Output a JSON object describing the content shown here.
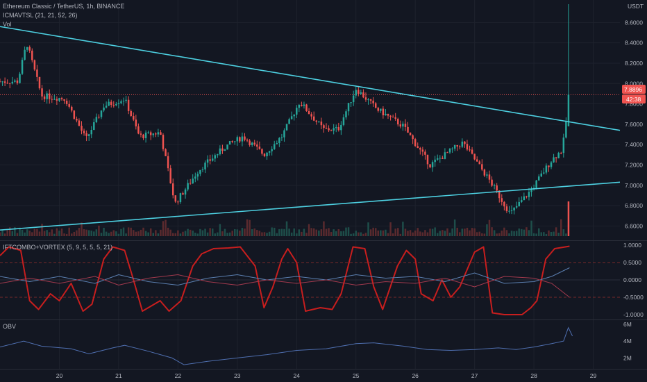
{
  "header": {
    "symbol_line": "Ethereum Classic / TetherUS, 1h, BINANCE",
    "indicator_line": "ICMAVTSL (21, 21, 52, 26)",
    "volume_label": "Vol",
    "currency": "USDT"
  },
  "price_tags": {
    "last_price": "7.8896",
    "countdown": "42:38"
  },
  "colors": {
    "up": "#26a69a",
    "down": "#ef5350",
    "trendline": "#4dd0e1",
    "ift": "#c81e1e",
    "vortex_plus": "#5b7fb0",
    "vortex_minus": "#a33a4e",
    "obv": "#4f6fb0",
    "background": "#131722"
  },
  "chart_data": [
    {
      "type": "candlestick",
      "pane": "price",
      "x_ticks": [
        "20",
        "21",
        "22",
        "23",
        "24",
        "25",
        "26",
        "27",
        "28",
        "29"
      ],
      "y_ticks": [
        "8.6000",
        "8.4000",
        "8.2000",
        "8.0000",
        "7.8000",
        "7.6000",
        "7.4000",
        "7.2000",
        "7.0000",
        "6.8000",
        "6.6000"
      ],
      "ylim": [
        6.5,
        8.78
      ],
      "candles_per_day": 24,
      "key_points": [
        {
          "day": 19.3,
          "price": 8.02
        },
        {
          "day": 19.45,
          "price": 8.4
        },
        {
          "day": 19.7,
          "price": 7.88
        },
        {
          "day": 20.1,
          "price": 7.85
        },
        {
          "day": 20.45,
          "price": 7.45
        },
        {
          "day": 20.75,
          "price": 7.78
        },
        {
          "day": 21.1,
          "price": 7.85
        },
        {
          "day": 21.35,
          "price": 7.48
        },
        {
          "day": 21.7,
          "price": 7.52
        },
        {
          "day": 21.95,
          "price": 6.82
        },
        {
          "day": 22.35,
          "price": 7.15
        },
        {
          "day": 22.8,
          "price": 7.38
        },
        {
          "day": 23.1,
          "price": 7.48
        },
        {
          "day": 23.45,
          "price": 7.3
        },
        {
          "day": 23.75,
          "price": 7.48
        },
        {
          "day": 24.05,
          "price": 7.82
        },
        {
          "day": 24.45,
          "price": 7.55
        },
        {
          "day": 24.7,
          "price": 7.55
        },
        {
          "day": 25.0,
          "price": 7.95
        },
        {
          "day": 25.35,
          "price": 7.75
        },
        {
          "day": 25.8,
          "price": 7.58
        },
        {
          "day": 26.25,
          "price": 7.2
        },
        {
          "day": 26.8,
          "price": 7.42
        },
        {
          "day": 27.25,
          "price": 7.05
        },
        {
          "day": 27.6,
          "price": 6.72
        },
        {
          "day": 27.95,
          "price": 6.95
        },
        {
          "day": 28.3,
          "price": 7.25
        },
        {
          "day": 28.48,
          "price": 7.35
        },
        {
          "day": 28.6,
          "price": 7.89
        }
      ],
      "trendlines": [
        {
          "points": [
            [
              19.0,
              8.56
            ],
            [
              29.45,
              7.54
            ]
          ]
        },
        {
          "points": [
            [
              19.0,
              6.56
            ],
            [
              29.45,
              7.03
            ]
          ]
        }
      ],
      "last_price": 7.8896
    },
    {
      "type": "bar",
      "pane": "volume",
      "label": "Vol",
      "spike_day": 28.6
    },
    {
      "type": "line",
      "pane": "oscillator",
      "label": "IFTCOMBO+VORTEX (5, 9, 5, 5, 5, 21)",
      "y_ticks": [
        "1.0000",
        "0.5000",
        "0.0000",
        "-0.5000",
        "-1.0000"
      ],
      "ylim": [
        -1.1,
        1.1
      ],
      "reference_lines": [
        0.5,
        -0.5
      ],
      "series": [
        {
          "key": "ift_combo",
          "points": [
            [
              19.0,
              0.7
            ],
            [
              19.15,
              0.95
            ],
            [
              19.35,
              0.85
            ],
            [
              19.5,
              -0.6
            ],
            [
              19.65,
              -0.85
            ],
            [
              19.85,
              -0.4
            ],
            [
              20.0,
              -0.6
            ],
            [
              20.2,
              -0.1
            ],
            [
              20.4,
              -0.9
            ],
            [
              20.55,
              -0.7
            ],
            [
              20.75,
              0.6
            ],
            [
              20.9,
              0.95
            ],
            [
              21.1,
              0.85
            ],
            [
              21.25,
              0.0
            ],
            [
              21.4,
              -0.9
            ],
            [
              21.7,
              -0.6
            ],
            [
              21.85,
              -0.9
            ],
            [
              22.05,
              -0.6
            ],
            [
              22.25,
              0.4
            ],
            [
              22.4,
              0.75
            ],
            [
              22.6,
              0.9
            ],
            [
              22.85,
              0.92
            ],
            [
              23.05,
              0.95
            ],
            [
              23.3,
              0.4
            ],
            [
              23.45,
              -0.8
            ],
            [
              23.6,
              -0.2
            ],
            [
              23.75,
              0.6
            ],
            [
              23.85,
              0.9
            ],
            [
              24.0,
              0.5
            ],
            [
              24.15,
              -0.9
            ],
            [
              24.4,
              -0.8
            ],
            [
              24.6,
              -0.85
            ],
            [
              24.75,
              -0.4
            ],
            [
              24.95,
              0.95
            ],
            [
              25.15,
              0.9
            ],
            [
              25.3,
              -0.2
            ],
            [
              25.45,
              -0.85
            ],
            [
              25.7,
              0.4
            ],
            [
              25.85,
              0.85
            ],
            [
              26.0,
              0.6
            ],
            [
              26.1,
              -0.4
            ],
            [
              26.3,
              -0.6
            ],
            [
              26.45,
              0.0
            ],
            [
              26.6,
              -0.5
            ],
            [
              26.75,
              -0.2
            ],
            [
              26.9,
              0.4
            ],
            [
              27.0,
              0.8
            ],
            [
              27.15,
              0.95
            ],
            [
              27.3,
              -0.95
            ],
            [
              27.5,
              -1.0
            ],
            [
              27.8,
              -1.0
            ],
            [
              27.95,
              -0.8
            ],
            [
              28.05,
              -0.6
            ],
            [
              28.2,
              0.6
            ],
            [
              28.35,
              0.9
            ],
            [
              28.6,
              0.97
            ]
          ]
        },
        {
          "key": "vortex_plus",
          "points": [
            [
              19.0,
              0.1
            ],
            [
              19.5,
              -0.05
            ],
            [
              20.0,
              0.1
            ],
            [
              20.6,
              -0.1
            ],
            [
              21.0,
              0.15
            ],
            [
              21.5,
              -0.05
            ],
            [
              22.0,
              -0.15
            ],
            [
              22.5,
              0.05
            ],
            [
              23.0,
              0.15
            ],
            [
              23.5,
              0.0
            ],
            [
              24.0,
              0.1
            ],
            [
              24.5,
              0.0
            ],
            [
              25.0,
              0.15
            ],
            [
              25.5,
              0.05
            ],
            [
              26.0,
              0.1
            ],
            [
              26.5,
              -0.05
            ],
            [
              27.0,
              0.2
            ],
            [
              27.5,
              -0.1
            ],
            [
              28.0,
              -0.05
            ],
            [
              28.3,
              0.1
            ],
            [
              28.6,
              0.35
            ]
          ]
        },
        {
          "key": "vortex_minus",
          "points": [
            [
              19.0,
              -0.1
            ],
            [
              19.5,
              0.05
            ],
            [
              20.0,
              -0.1
            ],
            [
              20.6,
              0.1
            ],
            [
              21.0,
              -0.15
            ],
            [
              21.5,
              0.05
            ],
            [
              22.0,
              0.15
            ],
            [
              22.5,
              -0.05
            ],
            [
              23.0,
              -0.15
            ],
            [
              23.5,
              0.0
            ],
            [
              24.0,
              -0.1
            ],
            [
              24.5,
              0.0
            ],
            [
              25.0,
              -0.15
            ],
            [
              25.5,
              -0.05
            ],
            [
              26.0,
              -0.1
            ],
            [
              26.5,
              0.05
            ],
            [
              27.0,
              -0.2
            ],
            [
              27.5,
              0.1
            ],
            [
              28.0,
              0.05
            ],
            [
              28.3,
              -0.1
            ],
            [
              28.6,
              -0.5
            ]
          ]
        }
      ]
    },
    {
      "type": "line",
      "pane": "obv",
      "label": "OBV",
      "y_ticks": [
        "6M",
        "4M",
        "2M"
      ],
      "ylim": [
        0.8,
        6.4
      ],
      "series": [
        {
          "key": "obv",
          "points": [
            [
              19.0,
              3.3
            ],
            [
              19.4,
              4.0
            ],
            [
              19.7,
              3.4
            ],
            [
              20.2,
              3.1
            ],
            [
              20.5,
              2.5
            ],
            [
              20.9,
              3.2
            ],
            [
              21.1,
              3.5
            ],
            [
              21.5,
              2.8
            ],
            [
              21.9,
              2.0
            ],
            [
              22.1,
              1.2
            ],
            [
              22.5,
              1.6
            ],
            [
              23.0,
              2.0
            ],
            [
              23.5,
              2.4
            ],
            [
              24.0,
              2.9
            ],
            [
              24.5,
              3.1
            ],
            [
              25.0,
              3.7
            ],
            [
              25.3,
              3.8
            ],
            [
              25.8,
              3.4
            ],
            [
              26.2,
              3.0
            ],
            [
              26.6,
              2.9
            ],
            [
              27.0,
              3.0
            ],
            [
              27.4,
              3.2
            ],
            [
              27.7,
              3.0
            ],
            [
              28.0,
              3.3
            ],
            [
              28.3,
              3.7
            ],
            [
              28.5,
              4.0
            ],
            [
              28.58,
              5.6
            ],
            [
              28.65,
              4.6
            ]
          ]
        }
      ]
    }
  ]
}
